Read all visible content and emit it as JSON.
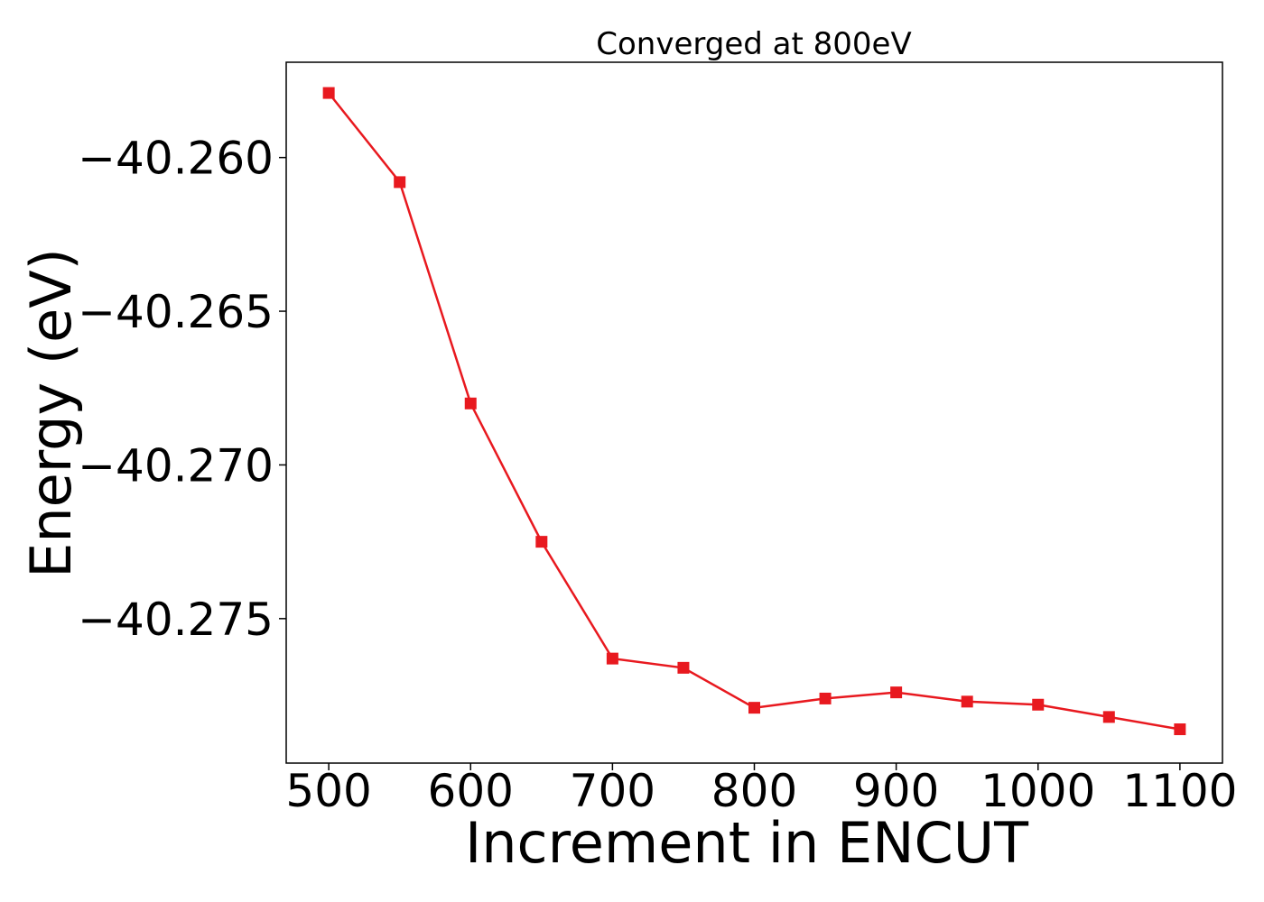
{
  "chart_data": {
    "type": "line",
    "title": "Converged at 800eV",
    "xlabel": "Increment in ENCUT",
    "ylabel": "Energy (eV)",
    "x": [
      500,
      550,
      600,
      650,
      700,
      750,
      800,
      850,
      900,
      950,
      1000,
      1050,
      1100
    ],
    "series": [
      {
        "values": [
          -40.2579,
          -40.2608,
          -40.268,
          -40.2725,
          -40.2763,
          -40.2766,
          -40.2779,
          -40.2776,
          -40.2774,
          -40.2777,
          -40.2778,
          -40.2782,
          -40.2786
        ],
        "color": "#e8191f",
        "marker": "square"
      }
    ],
    "xticks": [
      500,
      600,
      700,
      800,
      900,
      1000,
      1100
    ],
    "xtick_labels": [
      "500",
      "600",
      "700",
      "800",
      "900",
      "1000",
      "1100"
    ],
    "yticks": [
      -40.26,
      -40.265,
      -40.27,
      -40.275
    ],
    "ytick_labels": [
      "−40.260",
      "−40.265",
      "−40.270",
      "−40.275"
    ],
    "xlim": [
      470,
      1130
    ],
    "ylim": [
      -40.2797,
      -40.2569
    ],
    "grid": false,
    "legend": "none"
  }
}
